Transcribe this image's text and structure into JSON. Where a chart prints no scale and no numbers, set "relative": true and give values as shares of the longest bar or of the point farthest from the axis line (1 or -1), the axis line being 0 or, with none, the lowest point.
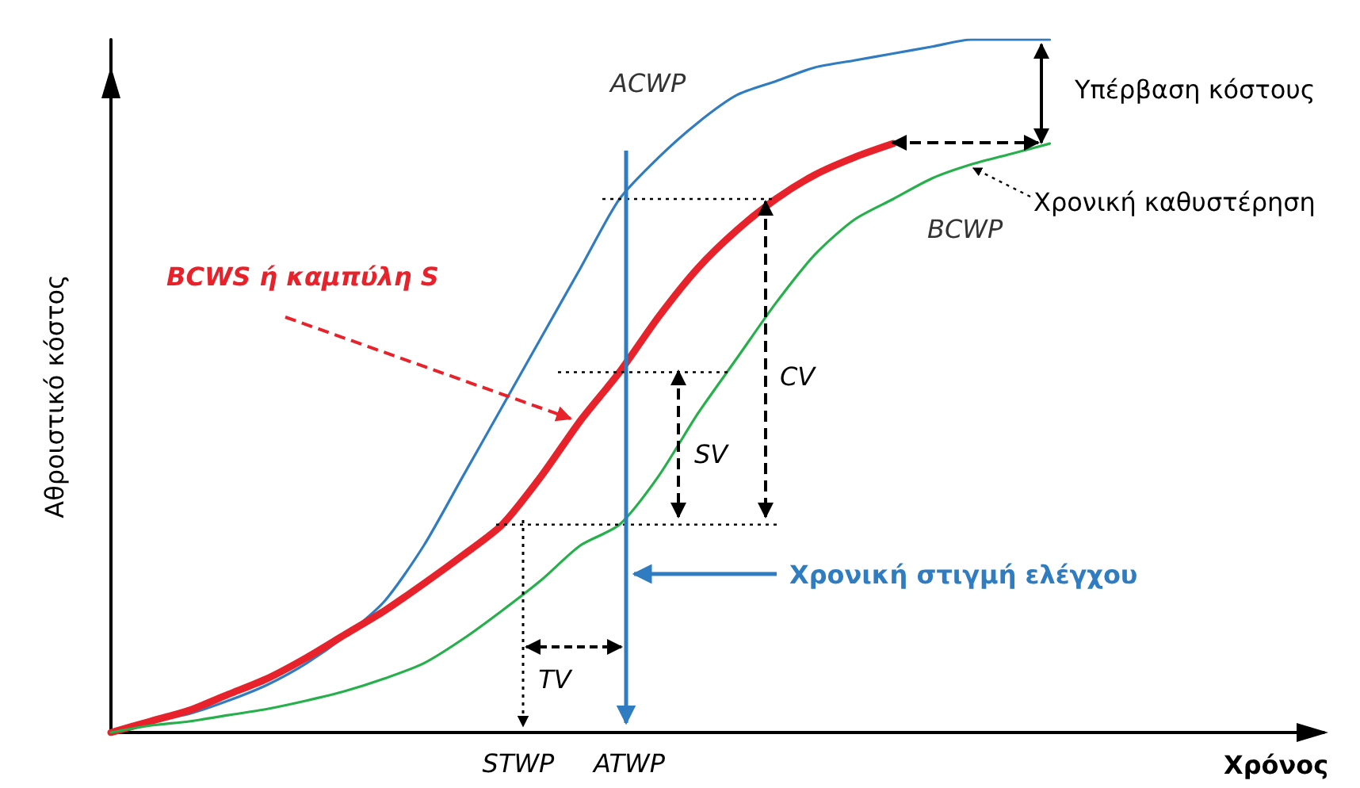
{
  "chart_data": {
    "type": "line",
    "relative": true,
    "marker": "none",
    "grid": false,
    "tick_labels": false,
    "ref_lines": [
      {
        "axis": "y",
        "value": 0.77,
        "line_style": "dotted"
      },
      {
        "axis": "y",
        "value": 0.52,
        "line_style": "dotted"
      },
      {
        "axis": "y",
        "value": 0.3,
        "line_style": "dotted"
      }
    ],
    "xlabel": "Χρόνος",
    "ylabel": "Αθροιστικό κόστος",
    "categories": [
      null,
      null,
      null,
      null,
      null,
      null,
      null,
      null,
      null,
      null,
      null,
      null,
      null,
      null,
      null,
      null,
      null,
      null,
      null,
      null,
      null,
      null,
      null,
      null,
      null,
      null,
      null,
      null,
      null,
      null,
      null,
      null
    ],
    "series": [
      {
        "name": "ACWP",
        "color": "#2f7cc1",
        "values": [
          0,
          0.016,
          0.027,
          0.046,
          0.069,
          0.1,
          0.14,
          0.19,
          0.27,
          0.37,
          0.47,
          0.57,
          0.67,
          0.77,
          0.83,
          0.88,
          0.92,
          0.94,
          0.96,
          0.97,
          0.98,
          0.99,
          1,
          1,
          1,
          null,
          null,
          null,
          null,
          null,
          null,
          null
        ]
      },
      {
        "name": "BCWS ή καμπύλη S",
        "color": "#e8222a",
        "values": [
          0,
          0.016,
          0.032,
          0.055,
          0.078,
          0.108,
          0.142,
          0.176,
          0.215,
          0.256,
          0.3,
          0.37,
          0.45,
          0.52,
          0.6,
          0.67,
          0.725,
          0.77,
          0.805,
          0.83,
          0.85,
          null,
          null,
          null,
          null,
          null,
          null,
          null,
          null,
          null,
          null,
          null
        ]
      },
      {
        "name": "BCWP",
        "color": "#25b04b",
        "values": [
          0,
          0.01,
          0.016,
          0.025,
          0.034,
          0.046,
          0.06,
          0.078,
          0.1,
          0.135,
          0.176,
          0.22,
          0.27,
          0.3,
          0.37,
          0.46,
          0.54,
          0.62,
          0.69,
          0.74,
          0.77,
          0.8,
          0.82,
          0.835,
          0.85,
          null,
          null,
          null,
          null,
          null,
          null,
          null
        ]
      }
    ],
    "annotations": [
      "Υπέρβαση κόστους",
      "Χρονική καθυστέρηση",
      "CV",
      "SV",
      "TV",
      "STWP",
      "ATWP",
      "Χρονική στιγμή ελέγχου"
    ]
  }
}
